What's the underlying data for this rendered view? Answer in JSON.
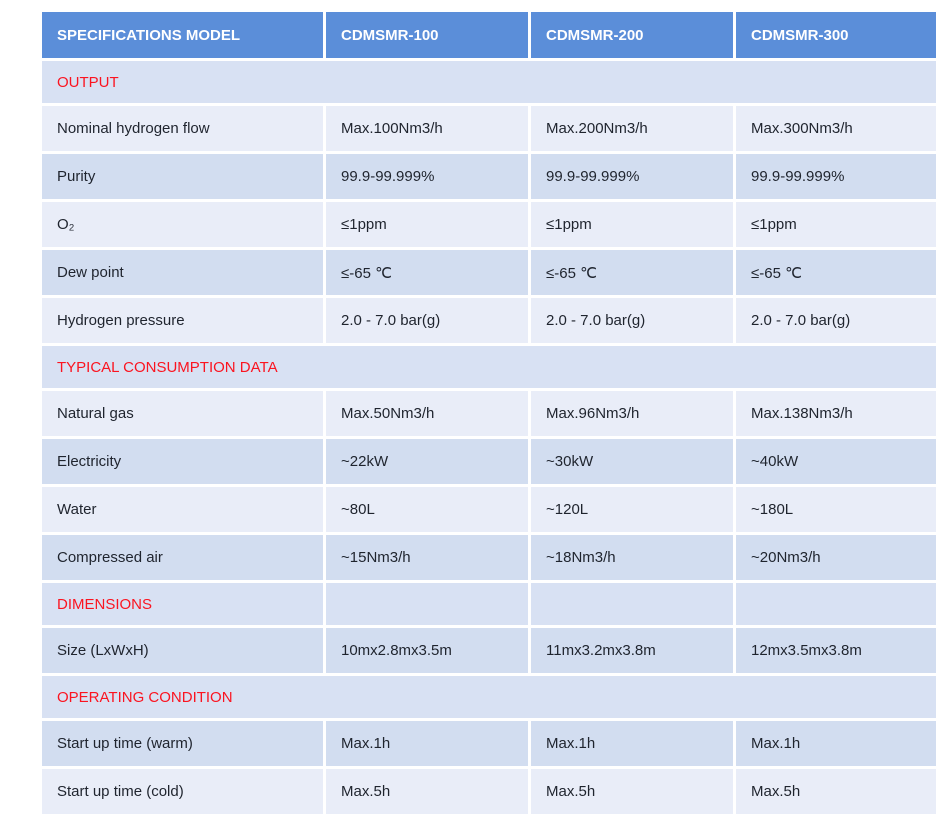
{
  "colors": {
    "header": "#5b8ed9",
    "rowLight": "#e9edf8",
    "rowDark": "#d2ddf0",
    "section": "#d8e1f3",
    "text": "#1f242e",
    "red": "#fb1420"
  },
  "table": {
    "header": {
      "col0": "SPECIFICATIONS MODEL",
      "col1": "CDMSMR-100",
      "col2": "CDMSMR-200",
      "col3": "CDMSMR-300"
    },
    "rows": [
      {
        "type": "section",
        "label": "OUTPUT"
      },
      {
        "type": "data",
        "shade": "light",
        "label": "Nominal hydrogen flow",
        "values": [
          "Max.100Nm3/h",
          "Max.200Nm3/h",
          "Max.300Nm3/h"
        ]
      },
      {
        "type": "data",
        "shade": "dark",
        "label": "Purity",
        "values": [
          "99.9-99.999%",
          "99.9-99.999%",
          "99.9-99.999%"
        ]
      },
      {
        "type": "data",
        "shade": "light",
        "label": "O₂",
        "values": [
          "≤1ppm",
          "≤1ppm",
          "≤1ppm"
        ]
      },
      {
        "type": "data",
        "shade": "dark",
        "label": "Dew point",
        "values": [
          "≤-65 ℃",
          "≤-65 ℃",
          "≤-65 ℃"
        ]
      },
      {
        "type": "data",
        "shade": "light",
        "label": "Hydrogen pressure",
        "values": [
          "2.0 - 7.0 bar(g)",
          "2.0 - 7.0 bar(g)",
          "2.0 - 7.0 bar(g)"
        ]
      },
      {
        "type": "section",
        "label": "TYPICAL CONSUMPTION DATA"
      },
      {
        "type": "data",
        "shade": "light",
        "label": "Natural gas",
        "values": [
          "Max.50Nm3/h",
          "Max.96Nm3/h",
          "Max.138Nm3/h"
        ]
      },
      {
        "type": "data",
        "shade": "dark",
        "label": "Electricity",
        "values": [
          "~22kW",
          "~30kW",
          "~40kW"
        ]
      },
      {
        "type": "data",
        "shade": "light",
        "label": "Water",
        "values": [
          "~80L",
          "~120L",
          "~180L"
        ]
      },
      {
        "type": "data",
        "shade": "dark",
        "label": "Compressed air",
        "values": [
          "~15Nm3/h",
          "~18Nm3/h",
          "~20Nm3/h"
        ]
      },
      {
        "type": "section-divided",
        "label": "DIMENSIONS",
        "values": [
          "",
          "",
          ""
        ]
      },
      {
        "type": "data",
        "shade": "dark",
        "label": "Size (LxWxH)",
        "values": [
          "10mx2.8mx3.5m",
          "11mx3.2mx3.8m",
          "12mx3.5mx3.8m"
        ]
      },
      {
        "type": "section",
        "label": "OPERATING CONDITION"
      },
      {
        "type": "data",
        "shade": "dark",
        "label": "Start up time (warm)",
        "values": [
          "Max.1h",
          "Max.1h",
          "Max.1h"
        ]
      },
      {
        "type": "data",
        "shade": "light",
        "label": "Start up time (cold)",
        "values": [
          "Max.5h",
          "Max.5h",
          "Max.5h"
        ]
      }
    ]
  }
}
